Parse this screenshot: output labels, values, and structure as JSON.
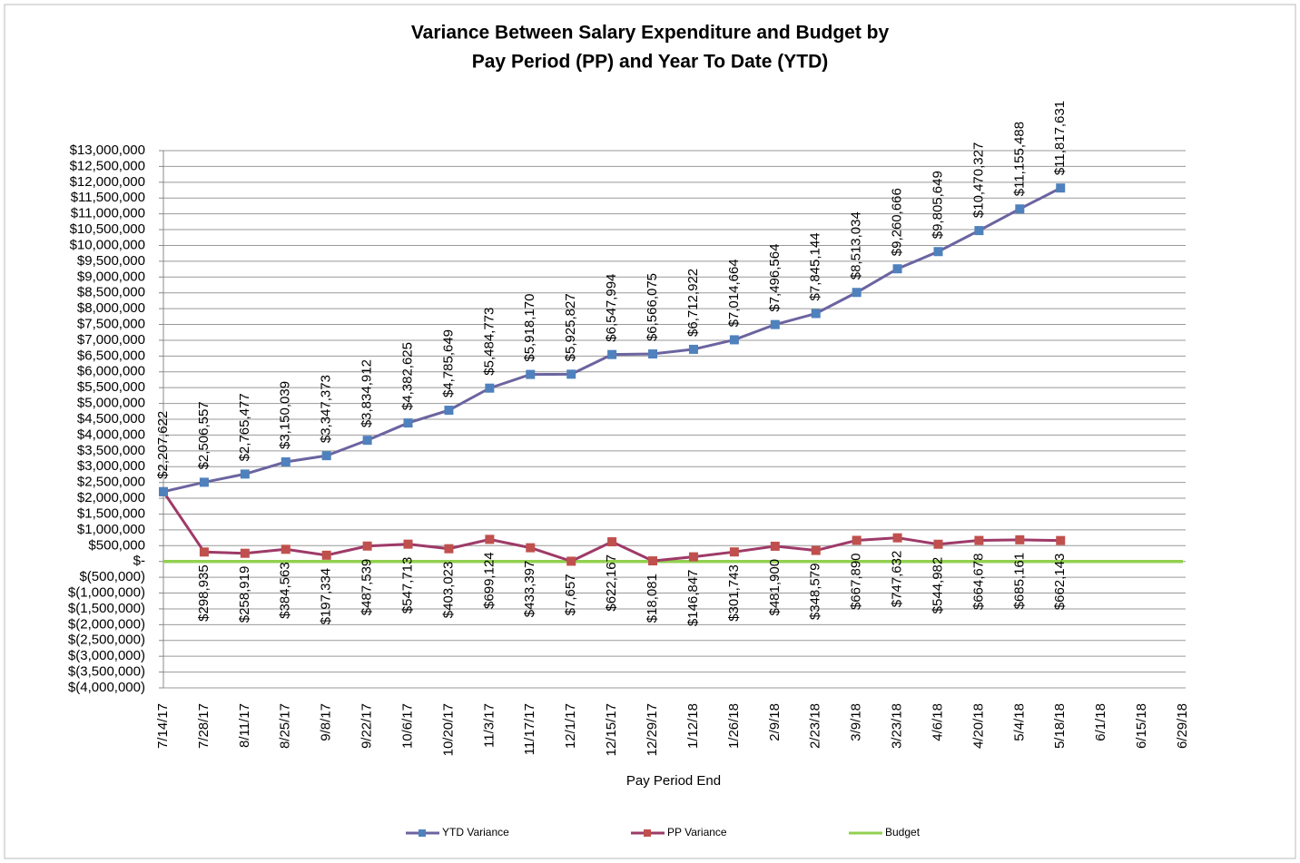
{
  "chart_data": {
    "type": "line",
    "title": [
      "Variance Between Salary Expenditure and Budget by",
      "Pay Period (PP) and Year To Date (YTD)"
    ],
    "x_label": "Pay Period End",
    "categories": [
      "7/14/17",
      "7/28/17",
      "8/11/17",
      "8/25/17",
      "9/8/17",
      "9/22/17",
      "10/6/17",
      "10/20/17",
      "11/3/17",
      "11/17/17",
      "12/1/17",
      "12/15/17",
      "12/29/17",
      "1/12/18",
      "1/26/18",
      "2/9/18",
      "2/23/18",
      "3/9/18",
      "3/23/18",
      "4/6/18",
      "4/20/18",
      "5/4/18",
      "5/18/18",
      "6/1/18",
      "6/15/18",
      "6/29/18"
    ],
    "series": [
      {
        "name": "YTD Variance",
        "color": "#6b64a0",
        "marker_color": "#4f81bd",
        "values": [
          2207622,
          2506557,
          2765477,
          3150039,
          3347373,
          3834912,
          4382625,
          4785649,
          5484773,
          5918170,
          5925827,
          6547994,
          6566075,
          6712922,
          7014664,
          7496564,
          7845144,
          8513034,
          9260666,
          9805649,
          10470327,
          11155488,
          11817631,
          null,
          null,
          null
        ],
        "value_labels": [
          "$2,207,622",
          "$2,506,557",
          "$2,765,477",
          "$3,150,039",
          "$3,347,373",
          "$3,834,912",
          "$4,382,625",
          "$4,785,649",
          "$5,484,773",
          "$5,918,170",
          "$5,925,827",
          "$6,547,994",
          "$6,566,075",
          "$6,712,922",
          "$7,014,664",
          "$7,496,564",
          "$7,845,144",
          "$8,513,034",
          "$9,260,666",
          "$9,805,649",
          "$10,470,327",
          "$11,155,488",
          "$11,817,631",
          null,
          null,
          null
        ],
        "label_side": "above"
      },
      {
        "name": "PP Variance",
        "color": "#9e3a68",
        "marker_color": "#c0504d",
        "values": [
          2207622,
          298935,
          258919,
          384563,
          197334,
          487539,
          547713,
          403023,
          699124,
          433397,
          7657,
          622167,
          18081,
          146847,
          301743,
          481900,
          348579,
          667890,
          747632,
          544982,
          664678,
          685161,
          662143,
          null,
          null,
          null
        ],
        "value_labels": [
          null,
          "$298,935",
          "$258,919",
          "$384,563",
          "$197,334",
          "$487,539",
          "$547,713",
          "$403,023",
          "$699,124",
          "$433,397",
          "$7,657",
          "$622,167",
          "$18,081",
          "$146,847",
          "$301,743",
          "$481,900",
          "$348,579",
          "$667,890",
          "$747,632",
          "$544,982",
          "$664,678",
          "$685,161",
          "$662,143",
          null,
          null,
          null
        ],
        "label_side": "below"
      },
      {
        "name": "Budget",
        "color": "#92d050",
        "values": [
          0,
          0,
          0,
          0,
          0,
          0,
          0,
          0,
          0,
          0,
          0,
          0,
          0,
          0,
          0,
          0,
          0,
          0,
          0,
          0,
          0,
          0,
          0,
          0,
          0,
          0
        ]
      }
    ],
    "ylim": [
      -4000000,
      13000000
    ],
    "yticks": [
      {
        "value": 13000000,
        "label": "$13,000,000"
      },
      {
        "value": 12500000,
        "label": "$12,500,000"
      },
      {
        "value": 12000000,
        "label": "$12,000,000"
      },
      {
        "value": 11500000,
        "label": "$11,500,000"
      },
      {
        "value": 11000000,
        "label": "$11,000,000"
      },
      {
        "value": 10500000,
        "label": "$10,500,000"
      },
      {
        "value": 10000000,
        "label": "$10,000,000"
      },
      {
        "value": 9500000,
        "label": "$9,500,000"
      },
      {
        "value": 9000000,
        "label": "$9,000,000"
      },
      {
        "value": 8500000,
        "label": "$8,500,000"
      },
      {
        "value": 8000000,
        "label": "$8,000,000"
      },
      {
        "value": 7500000,
        "label": "$7,500,000"
      },
      {
        "value": 7000000,
        "label": "$7,000,000"
      },
      {
        "value": 6500000,
        "label": "$6,500,000"
      },
      {
        "value": 6000000,
        "label": "$6,000,000"
      },
      {
        "value": 5500000,
        "label": "$5,500,000"
      },
      {
        "value": 5000000,
        "label": "$5,000,000"
      },
      {
        "value": 4500000,
        "label": "$4,500,000"
      },
      {
        "value": 4000000,
        "label": "$4,000,000"
      },
      {
        "value": 3500000,
        "label": "$3,500,000"
      },
      {
        "value": 3000000,
        "label": "$3,000,000"
      },
      {
        "value": 2500000,
        "label": "$2,500,000"
      },
      {
        "value": 2000000,
        "label": "$2,000,000"
      },
      {
        "value": 1500000,
        "label": "$1,500,000"
      },
      {
        "value": 1000000,
        "label": "$1,000,000"
      },
      {
        "value": 500000,
        "label": "$500,000"
      },
      {
        "value": 0,
        "label": "$-"
      },
      {
        "value": -500000,
        "label": "$(500,000)"
      },
      {
        "value": -1000000,
        "label": "$(1,000,000)"
      },
      {
        "value": -1500000,
        "label": "$(1,500,000)"
      },
      {
        "value": -2000000,
        "label": "$(2,000,000)"
      },
      {
        "value": -2500000,
        "label": "$(2,500,000)"
      },
      {
        "value": -3000000,
        "label": "$(3,000,000)"
      },
      {
        "value": -3500000,
        "label": "$(3,500,000)"
      },
      {
        "value": -4000000,
        "label": "$(4,000,000)"
      }
    ],
    "grid": true,
    "legend": "bottom"
  }
}
